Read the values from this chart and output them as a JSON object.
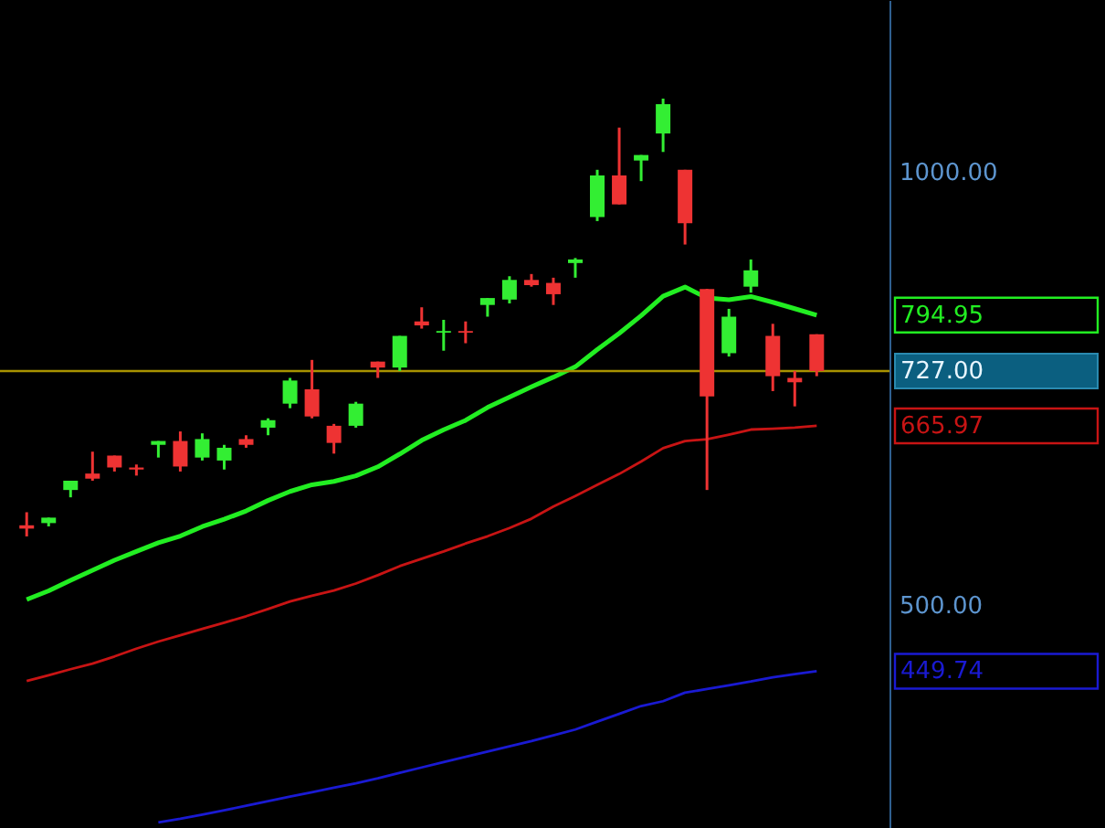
{
  "chart_data": {
    "type": "candlestick",
    "categories": [
      null,
      null,
      null,
      null,
      null,
      null,
      null,
      null,
      null,
      null,
      null,
      null,
      null,
      null,
      null,
      null,
      null,
      null,
      null,
      null,
      null,
      null,
      null,
      null,
      null,
      null,
      null,
      null,
      null,
      null,
      null,
      null,
      null,
      null,
      null,
      null,
      null
    ],
    "ohlc": [
      [
        568,
        580,
        558,
        565
      ],
      [
        570,
        575,
        567,
        575
      ],
      [
        601,
        610,
        594,
        610
      ],
      [
        617,
        639,
        610,
        612
      ],
      [
        635,
        635,
        619,
        623
      ],
      [
        623,
        626,
        615,
        621
      ],
      [
        646,
        650,
        633,
        650
      ],
      [
        650,
        660,
        619,
        624
      ],
      [
        633,
        658,
        630,
        652
      ],
      [
        630,
        646,
        621,
        643
      ],
      [
        652,
        656,
        643,
        646
      ],
      [
        664,
        674,
        656,
        672
      ],
      [
        690,
        719,
        685,
        716
      ],
      [
        706,
        740,
        674,
        676
      ],
      [
        666,
        668,
        637,
        648
      ],
      [
        666,
        692,
        664,
        690
      ],
      [
        738,
        738,
        719,
        731
      ],
      [
        731,
        769,
        727,
        769
      ],
      [
        787,
        805,
        778,
        782
      ],
      [
        773,
        789,
        751,
        775
      ],
      [
        775,
        787,
        760,
        773
      ],
      [
        808,
        817,
        793,
        817
      ],
      [
        815,
        846,
        810,
        841
      ],
      [
        841,
        849,
        832,
        834
      ],
      [
        837,
        844,
        808,
        822
      ],
      [
        864,
        871,
        844,
        869
      ],
      [
        930,
        1003,
        924,
        994
      ],
      [
        994,
        1073,
        949,
        949
      ],
      [
        1018,
        1027,
        985,
        1027
      ],
      [
        1063,
        1124,
        1032,
        1114
      ],
      [
        1003,
        1003,
        890,
        921
      ],
      [
        829,
        829,
        601,
        698
      ],
      [
        748,
        803,
        744,
        793
      ],
      [
        832,
        869,
        824,
        854
      ],
      [
        769,
        784,
        704,
        721
      ],
      [
        719,
        727,
        687,
        714
      ],
      [
        771,
        771,
        721,
        727
      ]
    ],
    "colors": [
      "#ee3333",
      "#33ee33",
      "#33ee33",
      "#ee3333",
      "#ee3333",
      "#ee3333",
      "#33ee33",
      "#ee3333",
      "#33ee33",
      "#33ee33",
      "#ee3333",
      "#33ee33",
      "#33ee33",
      "#ee3333",
      "#ee3333",
      "#33ee33",
      "#ee3333",
      "#33ee33",
      "#ee3333",
      "#33ee33",
      "#ee3333",
      "#33ee33",
      "#33ee33",
      "#ee3333",
      "#ee3333",
      "#33ee33",
      "#33ee33",
      "#ee3333",
      "#33ee33",
      "#33ee33",
      "#ee3333",
      "#ee3333",
      "#33ee33",
      "#33ee33",
      "#ee3333",
      "#ee3333",
      "#ee3333"
    ],
    "series": [
      {
        "type": "line",
        "color": "#22ee22",
        "values": [
          504.4,
          511.5,
          520.2,
          528.6,
          537.1,
          544.7,
          552.4,
          558.3,
          566.8,
          573.5,
          581.2,
          591.0,
          599.6,
          606.0,
          609.3,
          614.8,
          623.7,
          636.6,
          650.7,
          661.8,
          671.8,
          685.8,
          697.3,
          708.8,
          719.9,
          731.9,
          752.4,
          772.1,
          794.3,
          819.4,
          831.5,
          817.1,
          814.8,
          819.0,
          811.5,
          803.2,
          794.95
        ]
      },
      {
        "type": "line",
        "color": "#c81414",
        "values": [
          442.8,
          446.9,
          451.2,
          455.3,
          460.5,
          466.3,
          471.6,
          476.4,
          481.3,
          486.0,
          491.1,
          496.8,
          502.8,
          507.5,
          511.8,
          517.5,
          524.4,
          532.1,
          538.4,
          544.7,
          551.7,
          558.1,
          565.5,
          574.0,
          585.3,
          595.3,
          606.0,
          616.6,
          629.0,
          642.6,
          649.9,
          651.9,
          656.7,
          662.0,
          662.9,
          664.1,
          665.97
        ]
      },
      {
        "type": "line",
        "color": "#1a1ad2",
        "values": [
          null,
          null,
          null,
          null,
          null,
          null,
          353.2,
          355.2,
          357.6,
          360.0,
          362.7,
          365.4,
          368.0,
          370.6,
          373.3,
          375.9,
          378.9,
          382.3,
          385.6,
          388.9,
          392.2,
          395.5,
          398.9,
          402.2,
          405.9,
          409.7,
          414.9,
          420.1,
          425.4,
          428.7,
          434.6,
          437.1,
          439.8,
          442.4,
          445.4,
          447.7,
          449.74
        ]
      }
    ],
    "annotations": [
      "794.95",
      "665.97",
      "449.74"
    ],
    "ref_lines": [
      {
        "axis": "y",
        "value": 727,
        "label": "727.00",
        "color": "#a89200"
      }
    ],
    "ylim": [
      350,
      1316
    ],
    "yticks": [
      {
        "value": 1000,
        "label": "1000.00"
      },
      {
        "value": 500,
        "label": "500.00"
      }
    ],
    "log": "y",
    "tick_labels": "y",
    "grid": false
  }
}
